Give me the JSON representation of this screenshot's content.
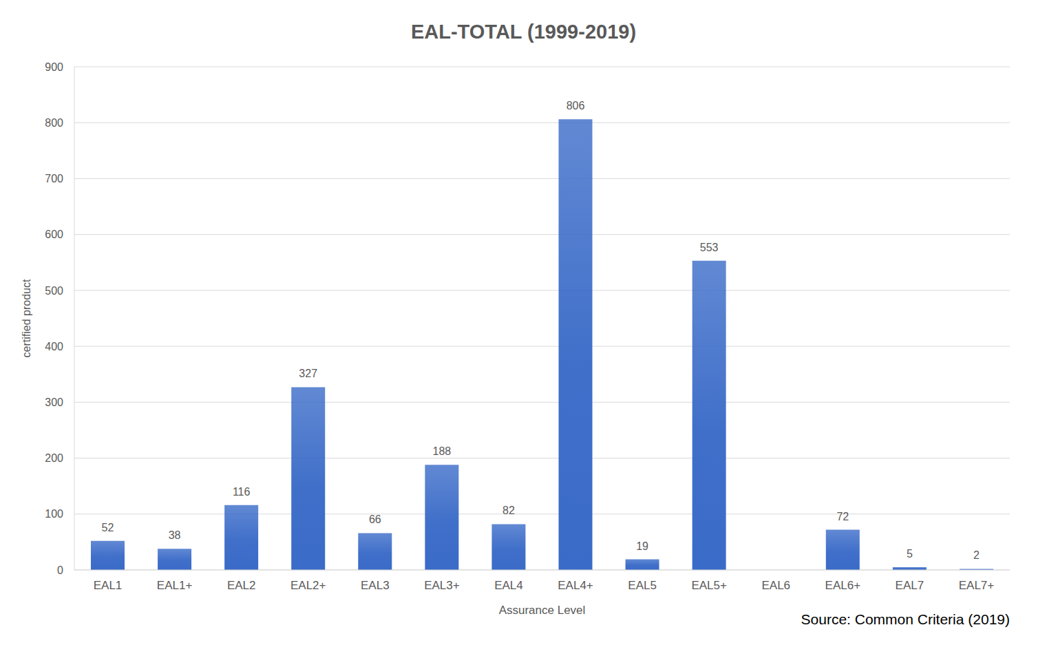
{
  "chart_data": {
    "type": "bar",
    "title": "EAL-TOTAL (1999-2019)",
    "x_label": "Assurance Level",
    "y_label": "certified product",
    "annotation": "Source: Common Criteria (2019)",
    "categories": [
      "EAL1",
      "EAL1+",
      "EAL2",
      "EAL2+",
      "EAL3",
      "EAL3+",
      "EAL4",
      "EAL4+",
      "EAL5",
      "EAL5+",
      "EAL6",
      "EAL6+",
      "EAL7",
      "EAL7+"
    ],
    "values": [
      52,
      38,
      116,
      327,
      66,
      188,
      82,
      806,
      19,
      553,
      0,
      72,
      5,
      2
    ],
    "color": "#3a6bc8",
    "ylim": [
      0,
      900
    ],
    "yticks": [
      0,
      100,
      200,
      300,
      400,
      500,
      600,
      700,
      800,
      900
    ],
    "grid": true,
    "data_labels": true
  }
}
